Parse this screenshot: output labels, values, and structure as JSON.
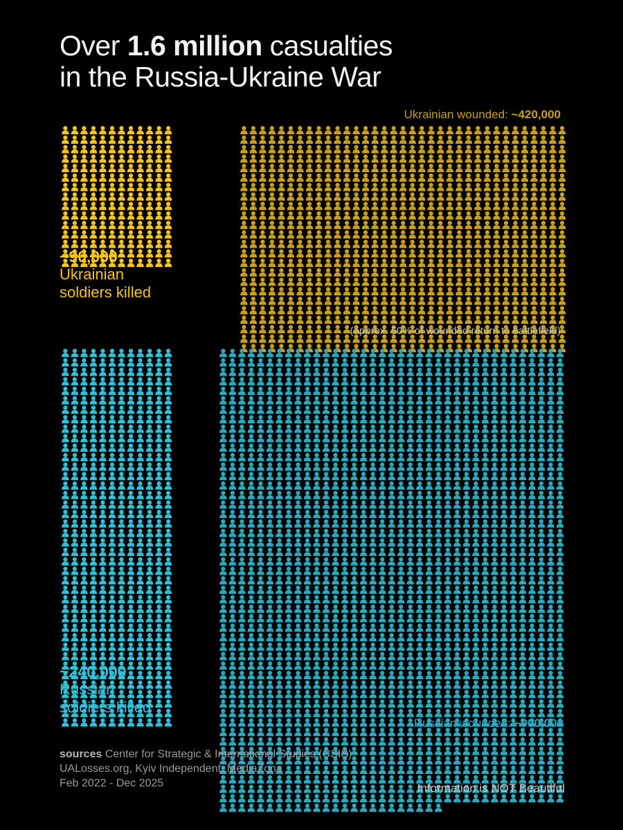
{
  "title": {
    "prefix": "Over ",
    "bold": "1.6 million",
    "suffix_line1": " casualties",
    "line2": "in the Russia-Ukraine War"
  },
  "colors": {
    "background": "#000000",
    "ukrainian_killed": "#f5c518",
    "ukrainian_wounded": "#c9a01a",
    "russian_killed": "#2fc1d8",
    "russian_wounded": "#2aa9bf"
  },
  "labels": {
    "ua_killed_value": "~90,000",
    "ua_killed_line1": "Ukrainian",
    "ua_killed_line2": "soldiers killed",
    "ua_wounded_text": "Ukrainian wounded: ",
    "ua_wounded_value": "~420,000",
    "ua_wounded_note": "(approx. 50% of wounded return to battlefield)",
    "ru_killed_value": "~240,000",
    "ru_killed_line1": "Russian",
    "ru_killed_line2": "soldiers killed",
    "ru_wounded_text": "Russian wounded: ",
    "ru_wounded_value": "~900,000"
  },
  "sources": {
    "label": "sources",
    "line1": " Center for Strategic & International Studies (CSIS)",
    "line2": "UALosses.org, Kyiv Independent, MediaZona",
    "line3": "Feb 2022 - Dec 2025"
  },
  "brand": "Information is NOT Beautiful",
  "chart_data": {
    "type": "pictogram",
    "icon": "soldier-icon",
    "series": [
      {
        "name": "Ukrainian soldiers killed",
        "value": 90000
      },
      {
        "name": "Ukrainian wounded",
        "value": 420000
      },
      {
        "name": "Russian soldiers killed",
        "value": 240000
      },
      {
        "name": "Russian wounded",
        "value": 900000
      }
    ]
  }
}
